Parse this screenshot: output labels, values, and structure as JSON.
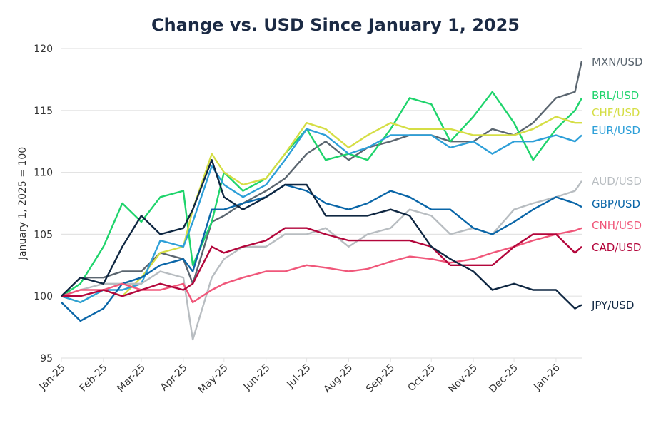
{
  "chart_data": {
    "type": "line",
    "title": "Change vs. USD Since January 1, 2025",
    "xlabel": "",
    "ylabel": "January 1, 2025 = 100",
    "ylim": [
      95,
      120
    ],
    "yticks": [
      95,
      100,
      105,
      110,
      115,
      120
    ],
    "xlim": [
      "2025-01-01",
      "2026-01-20"
    ],
    "xticks": [
      {
        "date": "2025-01-01",
        "label": "Jan-25"
      },
      {
        "date": "2025-02-01",
        "label": "Feb-25"
      },
      {
        "date": "2025-03-01",
        "label": "Mar-25"
      },
      {
        "date": "2025-04-01",
        "label": "Apr-25"
      },
      {
        "date": "2025-05-01",
        "label": "May-25"
      },
      {
        "date": "2025-06-01",
        "label": "Jun-25"
      },
      {
        "date": "2025-07-01",
        "label": "Jul-25"
      },
      {
        "date": "2025-08-01",
        "label": "Aug-25"
      },
      {
        "date": "2025-09-01",
        "label": "Sep-25"
      },
      {
        "date": "2025-10-01",
        "label": "Oct-25"
      },
      {
        "date": "2025-11-01",
        "label": "Nov-25"
      },
      {
        "date": "2025-12-01",
        "label": "Dec-25"
      },
      {
        "date": "2026-01-01",
        "label": "Jan-26"
      }
    ],
    "grid": "horizontal",
    "legend": "right, labels at line ends",
    "x": [
      "2025-01-01",
      "2025-01-15",
      "2025-02-01",
      "2025-02-15",
      "2025-03-01",
      "2025-03-15",
      "2025-04-01",
      "2025-04-08",
      "2025-04-22",
      "2025-05-01",
      "2025-05-15",
      "2025-06-01",
      "2025-06-15",
      "2025-07-01",
      "2025-07-15",
      "2025-08-01",
      "2025-08-15",
      "2025-09-01",
      "2025-09-15",
      "2025-10-01",
      "2025-10-15",
      "2025-11-01",
      "2025-11-15",
      "2025-12-01",
      "2025-12-15",
      "2026-01-01",
      "2026-01-15",
      "2026-01-20"
    ],
    "series": [
      {
        "name": "MXN/USD",
        "color": "#5b6670",
        "values": [
          100,
          101.5,
          101.5,
          102,
          102,
          103.5,
          103,
          101,
          106,
          106.5,
          107.5,
          108.5,
          109.5,
          111.5,
          112.5,
          111,
          112,
          112.5,
          113,
          113,
          112.5,
          112.5,
          113.5,
          113,
          114,
          116,
          116.5,
          119
        ]
      },
      {
        "name": "BRL/USD",
        "color": "#1fd46c",
        "values": [
          100,
          101,
          104,
          107.5,
          106,
          108,
          108.5,
          102.5,
          106,
          110,
          108.5,
          109.5,
          111.5,
          113.5,
          111,
          111.5,
          111,
          113.5,
          116,
          115.5,
          112.5,
          114.5,
          116.5,
          114,
          111,
          113.5,
          115,
          116
        ]
      },
      {
        "name": "CHF/USD",
        "color": "#d5de45",
        "values": [
          100,
          99.5,
          100.5,
          100,
          101.5,
          103.5,
          104,
          107,
          111.5,
          110,
          109,
          109.5,
          111.5,
          114,
          113.5,
          112,
          113,
          114,
          113.5,
          113.5,
          113.5,
          113,
          113,
          113,
          113.5,
          114.5,
          114,
          114
        ]
      },
      {
        "name": "EUR/USD",
        "color": "#2d9fd8",
        "values": [
          100,
          99.5,
          100.5,
          100.5,
          101,
          104.5,
          104,
          106,
          110.5,
          109,
          108,
          109,
          111,
          113.5,
          113,
          111.5,
          112,
          113,
          113,
          113,
          112,
          112.5,
          111.5,
          112.5,
          112.5,
          113,
          112.5,
          113
        ]
      },
      {
        "name": "AUD/USD",
        "color": "#b8bdc1",
        "values": [
          100,
          100.5,
          101,
          101,
          101,
          102,
          101.5,
          96.5,
          101.5,
          103,
          104,
          104,
          105,
          105,
          105.5,
          104,
          105,
          105.5,
          107,
          106.5,
          105,
          105.5,
          105,
          107,
          107.5,
          108,
          108.5,
          109.3
        ]
      },
      {
        "name": "GBP/USD",
        "color": "#0a66a8",
        "values": [
          99.5,
          98,
          99,
          101,
          101.5,
          102.5,
          103,
          102,
          107,
          107,
          107.5,
          108,
          109,
          108.5,
          107.5,
          107,
          107.5,
          108.5,
          108,
          107,
          107,
          105.5,
          105,
          106,
          107,
          108,
          107.5,
          107.2
        ]
      },
      {
        "name": "CNH/USD",
        "color": "#f0577a",
        "values": [
          100,
          100.5,
          100.5,
          101,
          100.5,
          100.5,
          101,
          99.5,
          100.5,
          101,
          101.5,
          102,
          102,
          102.5,
          102.3,
          102,
          102.2,
          102.8,
          103.2,
          103,
          102.7,
          103,
          103.5,
          104,
          104.5,
          105,
          105.3,
          105.5
        ]
      },
      {
        "name": "CAD/USD",
        "color": "#b3063b",
        "values": [
          100,
          100,
          100.5,
          100,
          100.5,
          101,
          100.5,
          101,
          104,
          103.5,
          104,
          104.5,
          105.5,
          105.5,
          105,
          104.5,
          104.5,
          104.5,
          104.5,
          104,
          102.5,
          102.5,
          102.5,
          104,
          105,
          105,
          103.5,
          104
        ]
      },
      {
        "name": "JPY/USD",
        "color": "#0f2742",
        "values": [
          100,
          101.5,
          101,
          104,
          106.5,
          105,
          105.5,
          107,
          111,
          108,
          107,
          108,
          109,
          109,
          106.5,
          106.5,
          106.5,
          107,
          106.5,
          104,
          103,
          102,
          100.5,
          101,
          100.5,
          100.5,
          99,
          99.3
        ]
      }
    ]
  }
}
